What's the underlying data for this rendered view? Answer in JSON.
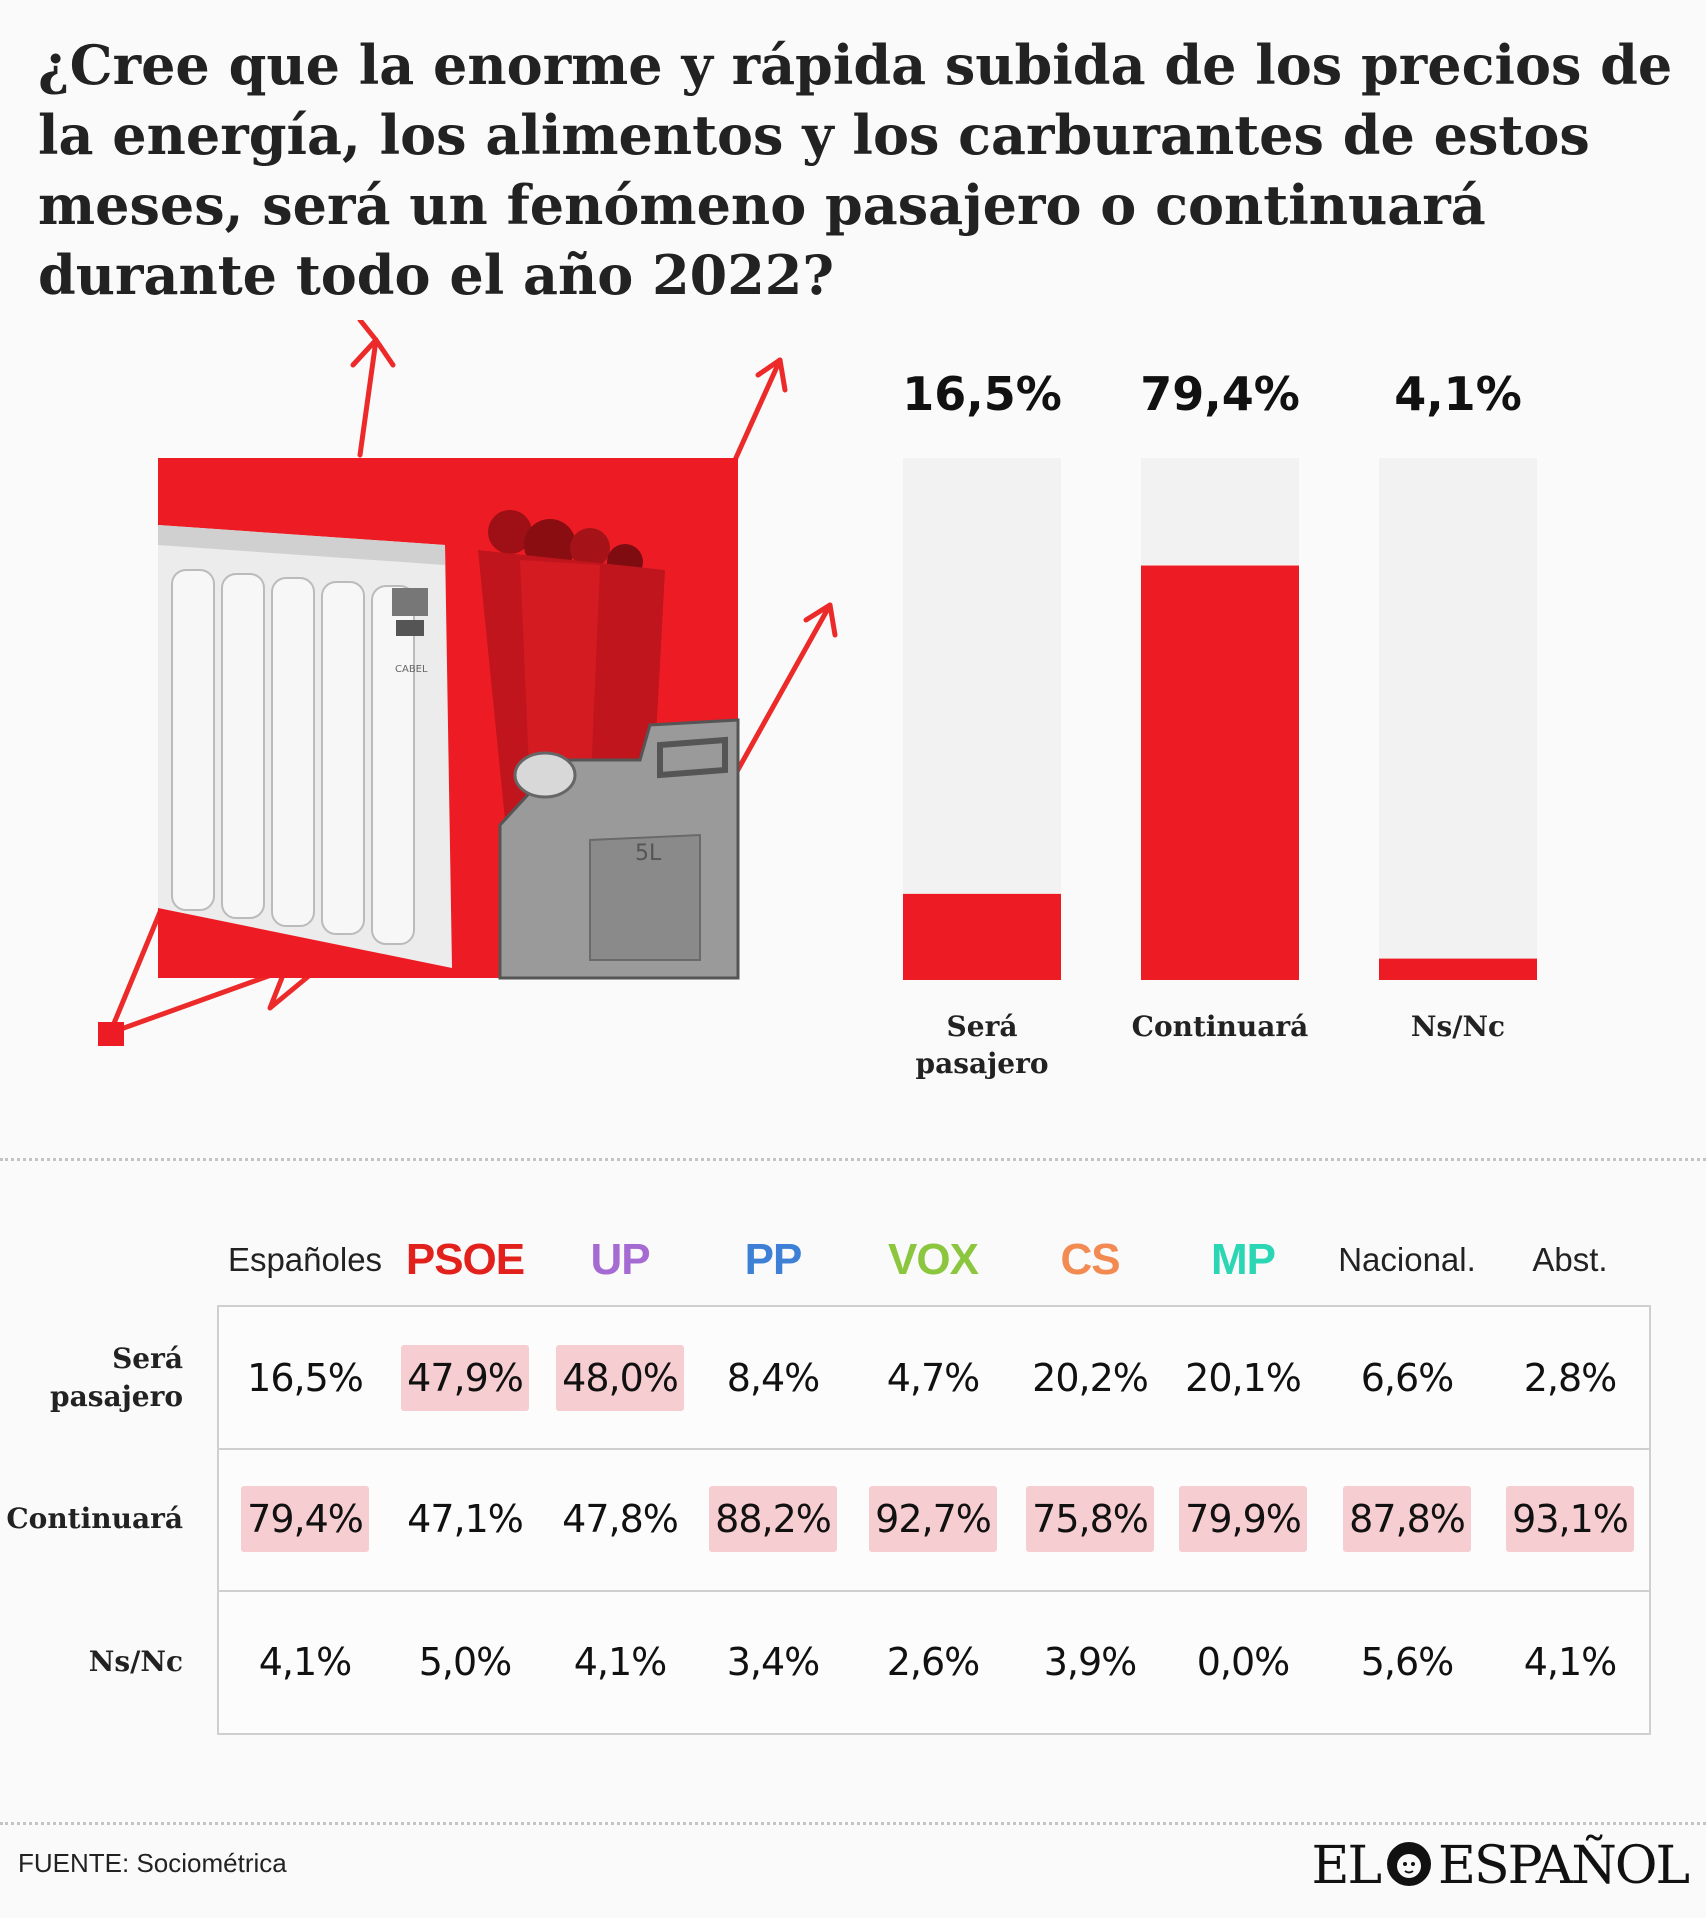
{
  "question": "¿Cree que la enorme y rápida subida de los precios de la energía, los alimentos y los carburantes de estos meses, será un fenómeno  pasajero o continuará durante todo el año 2022?",
  "colors": {
    "accent": "#ed1c24",
    "bar_track": "#f2f2f2",
    "highlight": "#f6cdd0"
  },
  "illustration": {
    "radiator_brand": "CABEL",
    "jerrycan_mark": "5L"
  },
  "chart_data": {
    "type": "bar",
    "categories": [
      "Será pasajero",
      "Continuará",
      "Ns/Nc"
    ],
    "category_lines": [
      [
        "Será",
        "pasajero"
      ],
      [
        "Continuará"
      ],
      [
        "Ns/Nc"
      ]
    ],
    "values": [
      16.5,
      79.4,
      4.1
    ],
    "value_labels": [
      "16,5%",
      "79,4%",
      "4,1%"
    ],
    "ylim": [
      0,
      100
    ],
    "grid": false,
    "title": "",
    "xlabel": "",
    "ylabel": ""
  },
  "table": {
    "columns": [
      {
        "label": "Españoles",
        "color": "#222222",
        "party": false
      },
      {
        "label": "PSOE",
        "color": "#e2211c",
        "party": true
      },
      {
        "label": "UP",
        "color": "#a66bd3",
        "party": true
      },
      {
        "label": "PP",
        "color": "#3d80d6",
        "party": true
      },
      {
        "label": "VOX",
        "color": "#8cc63f",
        "party": true
      },
      {
        "label": "CS",
        "color": "#f28a52",
        "party": true
      },
      {
        "label": "MP",
        "color": "#2bd6b4",
        "party": true
      },
      {
        "label": "Nacional.",
        "color": "#222222",
        "party": false
      },
      {
        "label": "Abst.",
        "color": "#222222",
        "party": false
      }
    ],
    "rows": [
      {
        "label_lines": [
          "Será",
          "pasajero"
        ],
        "values": [
          "16,5%",
          "47,9%",
          "48,0%",
          "8,4%",
          "4,7%",
          "20,2%",
          "20,1%",
          "6,6%",
          "2,8%"
        ],
        "highlight": [
          false,
          true,
          true,
          false,
          false,
          false,
          false,
          false,
          false
        ]
      },
      {
        "label_lines": [
          "Continuará"
        ],
        "values": [
          "79,4%",
          "47,1%",
          "47,8%",
          "88,2%",
          "92,7%",
          "75,8%",
          "79,9%",
          "87,8%",
          "93,1%"
        ],
        "highlight": [
          true,
          false,
          false,
          true,
          true,
          true,
          true,
          true,
          true
        ]
      },
      {
        "label_lines": [
          "Ns/Nc"
        ],
        "values": [
          "4,1%",
          "5,0%",
          "4,1%",
          "3,4%",
          "2,6%",
          "3,9%",
          "0,0%",
          "5,6%",
          "4,1%"
        ],
        "highlight": [
          false,
          false,
          false,
          false,
          false,
          false,
          false,
          false,
          false
        ]
      }
    ]
  },
  "footer": {
    "source": "FUENTE: Sociométrica",
    "logo_left": "EL",
    "logo_right": "ESPAÑOL"
  }
}
